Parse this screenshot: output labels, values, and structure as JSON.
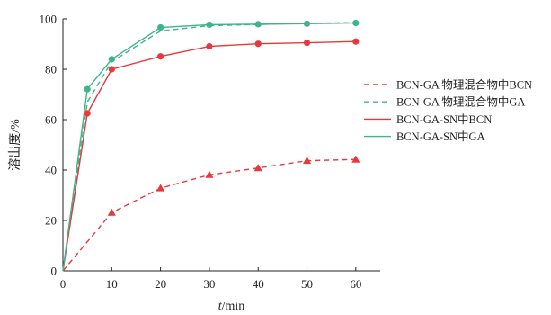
{
  "chart_data": {
    "type": "line",
    "title": "",
    "xlabel": "t/min",
    "ylabel": "溶出度/%",
    "x": [
      0,
      5,
      10,
      20,
      30,
      40,
      50,
      60
    ],
    "xlim": [
      0,
      65
    ],
    "ylim": [
      0,
      100
    ],
    "xticks": [
      0,
      10,
      20,
      30,
      40,
      50,
      60
    ],
    "yticks": [
      0,
      20,
      40,
      60,
      80,
      100
    ],
    "grid": false,
    "legend_position": "right",
    "series": [
      {
        "name": "BCN-GA 物理混合物中BCN",
        "color": "#e8383d",
        "line_style": "dashed",
        "marker": "triangle",
        "values": [
          0,
          23.1,
          null,
          32.8,
          38.1,
          40.8,
          43.7,
          44.2
        ],
        "x": [
          0,
          10,
          null,
          20,
          30,
          40,
          50,
          60
        ]
      },
      {
        "name": "BCN-GA 物理混合物中GA",
        "color": "#3fb489",
        "line_style": "dashed",
        "marker": "none",
        "values": [
          0,
          67.0,
          83.0,
          95.2,
          97.3,
          97.8,
          98.3,
          98.5
        ]
      },
      {
        "name": "BCN-GA-SN中BCN",
        "color": "#e8383d",
        "line_style": "solid",
        "marker": "circle",
        "values": [
          0,
          62.5,
          80.0,
          85.1,
          89.1,
          90.1,
          90.5,
          91.0
        ]
      },
      {
        "name": "BCN-GA-SN中GA",
        "color": "#3fb489",
        "line_style": "solid",
        "marker": "circle",
        "values": [
          0,
          72.1,
          84.0,
          96.6,
          97.7,
          97.9,
          98.1,
          98.4
        ]
      }
    ]
  }
}
